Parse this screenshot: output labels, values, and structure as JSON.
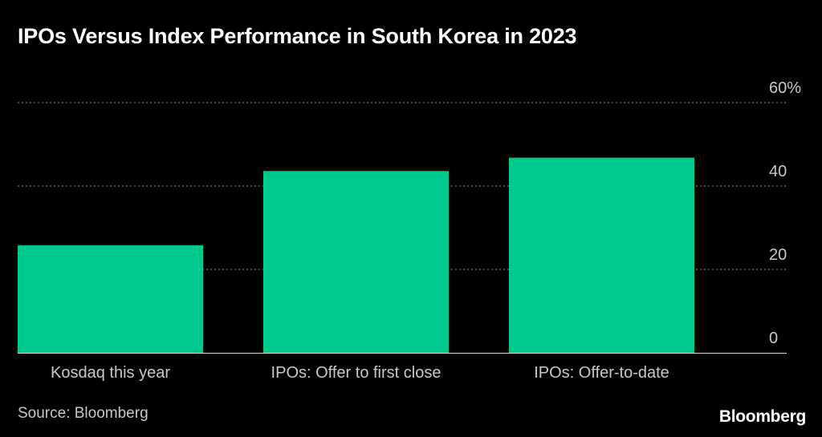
{
  "chart_data": {
    "type": "bar",
    "title": "IPOs Versus Index Performance in South Korea in 2023",
    "categories": [
      "Kosdaq this year",
      "IPOs: Offer to first close",
      "IPOs: Offer-to-date"
    ],
    "values": [
      25.8,
      43.6,
      46.8
    ],
    "ylim": [
      0,
      60
    ],
    "yticks": [
      0,
      20,
      40,
      60
    ],
    "ytick_labels": [
      "0",
      "20",
      "40",
      "60%"
    ],
    "xlabel": "",
    "ylabel": "",
    "grid": true,
    "bar_color": "#00c98d",
    "grid_color": "#8a8a8a",
    "tick_color": "#c8c8c8"
  },
  "footer": {
    "source": "Source: Bloomberg",
    "brand": "Bloomberg"
  }
}
